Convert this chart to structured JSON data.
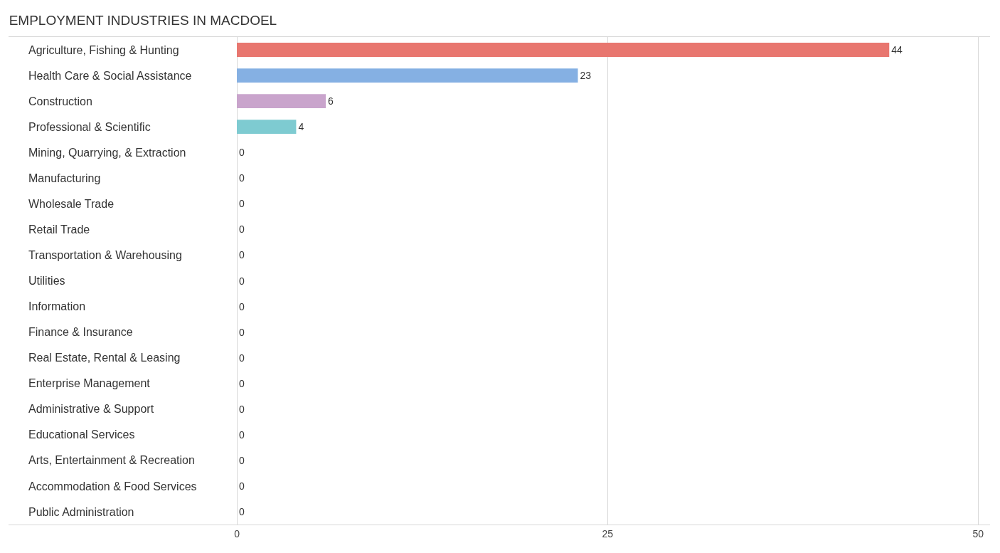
{
  "chart_data": {
    "type": "bar",
    "orientation": "horizontal",
    "title": "EMPLOYMENT INDUSTRIES IN MACDOEL",
    "categories": [
      "Agriculture, Fishing & Hunting",
      "Health Care & Social Assistance",
      "Construction",
      "Professional & Scientific",
      "Mining, Quarrying, & Extraction",
      "Manufacturing",
      "Wholesale Trade",
      "Retail Trade",
      "Transportation & Warehousing",
      "Utilities",
      "Information",
      "Finance & Insurance",
      "Real Estate, Rental & Leasing",
      "Enterprise Management",
      "Administrative & Support",
      "Educational Services",
      "Arts, Entertainment & Recreation",
      "Accommodation & Food Services",
      "Public Administration"
    ],
    "values": [
      44,
      23,
      6,
      4,
      0,
      0,
      0,
      0,
      0,
      0,
      0,
      0,
      0,
      0,
      0,
      0,
      0,
      0,
      0
    ],
    "colors": [
      "#e8766f",
      "#85b0e3",
      "#c9a4cc",
      "#7ecbd1",
      "#b3bdee",
      "#f7a6c1",
      "#fbc89a",
      "#f0aaa8",
      "#a9c8ee",
      "#c9a4cc",
      "#7ecbd1",
      "#b3bdee",
      "#f7a6c1",
      "#fbc89a",
      "#f0aaa8",
      "#a9c8ee",
      "#c9a4cc",
      "#7ecbd1",
      "#b3bdee"
    ],
    "xlim": [
      -15.4,
      50.8
    ],
    "xticks": [
      0,
      25,
      50
    ],
    "grid": "x",
    "data_labels": true
  }
}
